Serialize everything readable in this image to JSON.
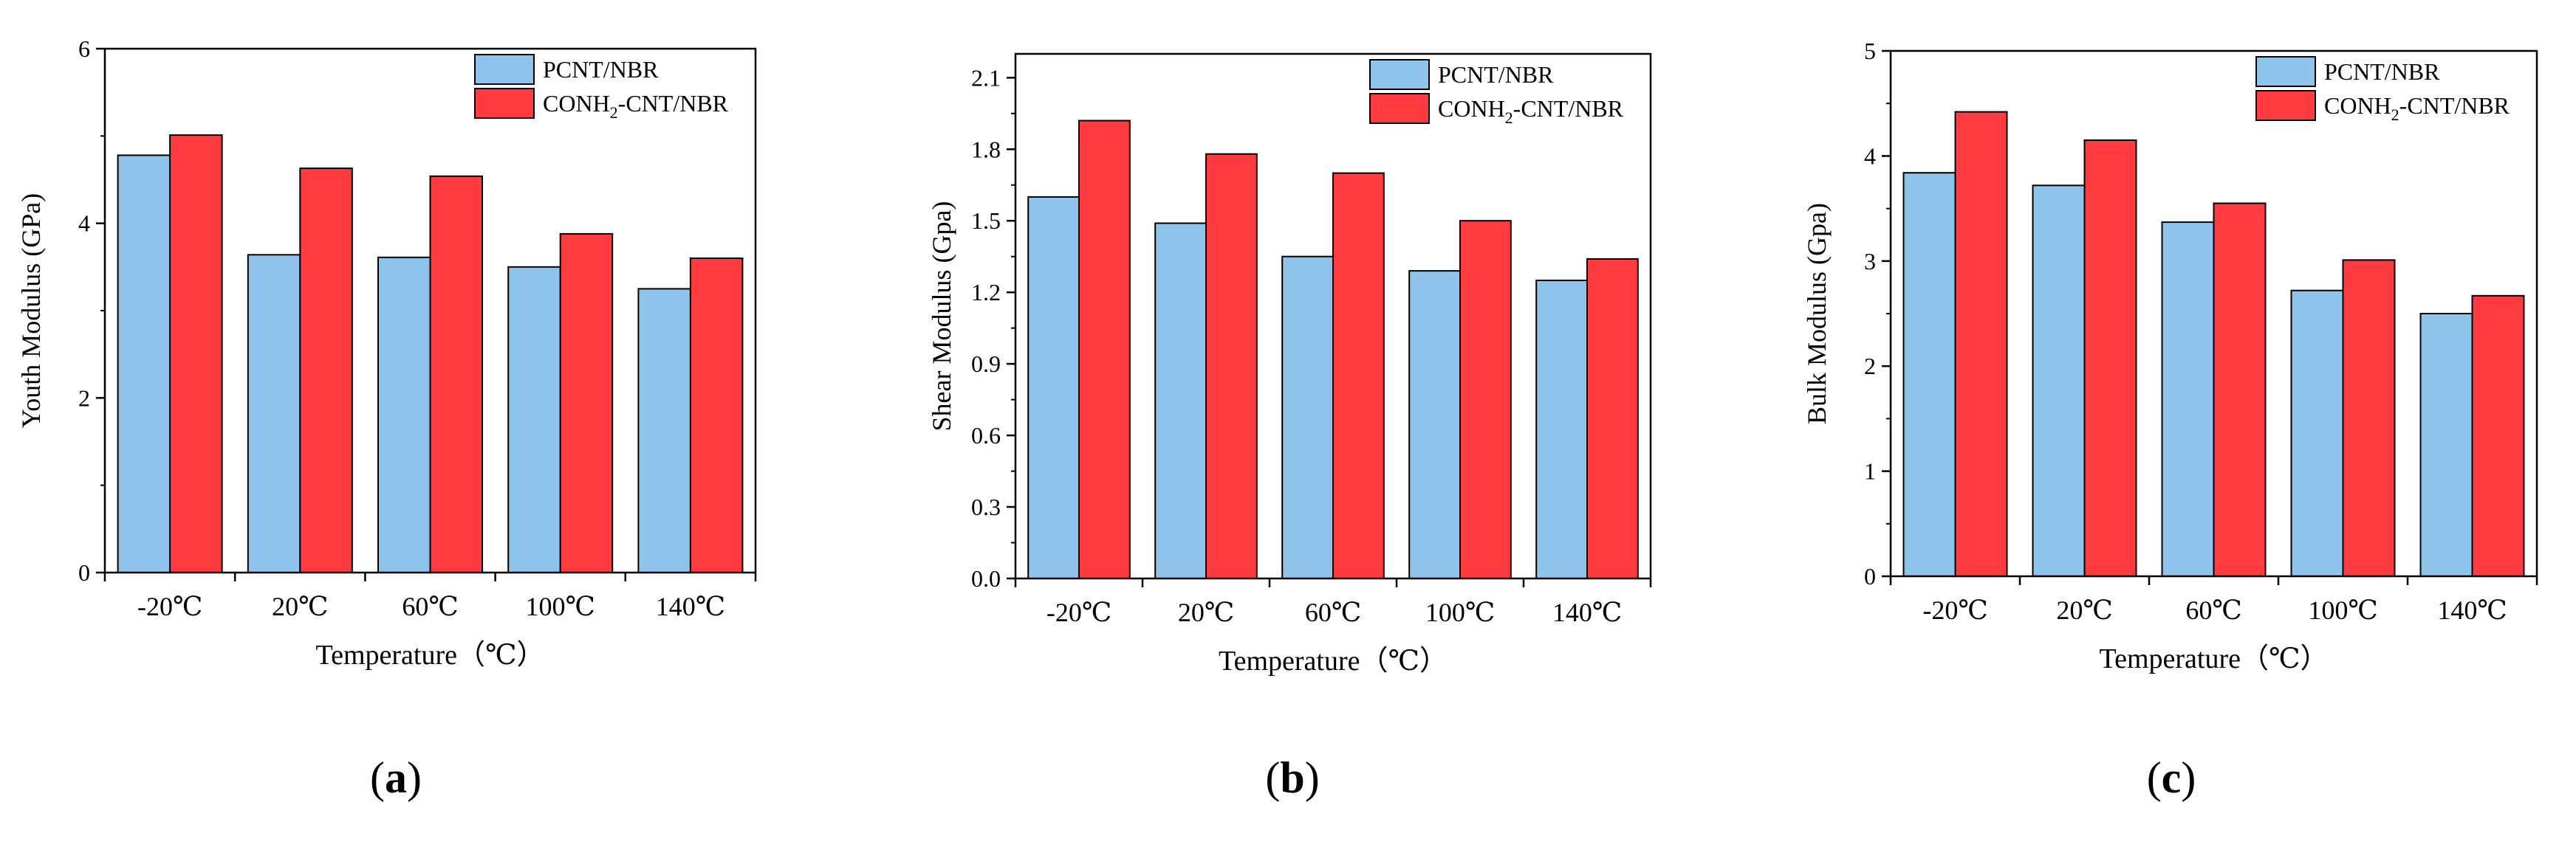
{
  "colors": {
    "series1": "#8EC3EC",
    "series2": "#FF3B3F",
    "axis": "#000000"
  },
  "chart_data": [
    {
      "type": "bar",
      "panel_label": "(a)",
      "panel_label_parts": {
        "open": "(",
        "letter": "a",
        "close": ")"
      },
      "categories": [
        "-20℃",
        "20℃",
        "60℃",
        "100℃",
        "140℃"
      ],
      "series": [
        {
          "name": "PCNT/NBR",
          "legend_parts": [
            "PCNT/NBR"
          ],
          "values": [
            4.78,
            3.64,
            3.61,
            3.5,
            3.25
          ]
        },
        {
          "name": "CONH2-CNT/NBR",
          "legend_parts": [
            "CONH",
            "2",
            "-CNT/NBR"
          ],
          "values": [
            5.01,
            4.63,
            4.54,
            3.88,
            3.6
          ]
        }
      ],
      "xlabel": "Temperature（℃）",
      "ylabel": "Youth Modulus (GPa)",
      "ylim": [
        0,
        6
      ],
      "yticks": [
        0,
        2,
        4,
        6
      ],
      "yticklabels": [
        "0",
        "2",
        "4",
        "6"
      ],
      "legend_position": "top-right"
    },
    {
      "type": "bar",
      "panel_label": "(b)",
      "panel_label_parts": {
        "open": "(",
        "letter": "b",
        "close": ")"
      },
      "categories": [
        "-20℃",
        "20℃",
        "60℃",
        "100℃",
        "140℃"
      ],
      "series": [
        {
          "name": "PCNT/NBR",
          "legend_parts": [
            "PCNT/NBR"
          ],
          "values": [
            1.6,
            1.49,
            1.35,
            1.29,
            1.25
          ]
        },
        {
          "name": "CONH2-CNT/NBR",
          "legend_parts": [
            "CONH",
            "2",
            "-CNT/NBR"
          ],
          "values": [
            1.92,
            1.78,
            1.7,
            1.5,
            1.34
          ]
        }
      ],
      "xlabel": "Temperature（℃）",
      "ylabel": "Shear Modulus (Gpa)",
      "ylim": [
        0,
        2.2
      ],
      "yticks": [
        0,
        0.3,
        0.6,
        0.9,
        1.2,
        1.5,
        1.8,
        2.1
      ],
      "yticklabels": [
        "0.0",
        "0.3",
        "0.6",
        "0.9",
        "1.2",
        "1.5",
        "1.8",
        "2.1"
      ],
      "legend_position": "top-right"
    },
    {
      "type": "bar",
      "panel_label": "(c)",
      "panel_label_parts": {
        "open": "(",
        "letter": "c",
        "close": ")"
      },
      "categories": [
        "-20℃",
        "20℃",
        "60℃",
        "100℃",
        "140℃"
      ],
      "series": [
        {
          "name": "PCNT/NBR",
          "legend_parts": [
            "PCNT/NBR"
          ],
          "values": [
            3.84,
            3.72,
            3.37,
            2.72,
            2.5
          ]
        },
        {
          "name": "CONH2-CNT/NBR",
          "legend_parts": [
            "CONH",
            "2",
            "-CNT/NBR"
          ],
          "values": [
            4.42,
            4.15,
            3.55,
            3.01,
            2.67
          ]
        }
      ],
      "xlabel": "Temperature（℃）",
      "ylabel": "Bulk Modulus (Gpa)",
      "ylim": [
        0,
        5
      ],
      "yticks": [
        0,
        1,
        2,
        3,
        4,
        5
      ],
      "yticklabels": [
        "0",
        "1",
        "2",
        "3",
        "4",
        "5"
      ],
      "legend_position": "top-right"
    }
  ]
}
